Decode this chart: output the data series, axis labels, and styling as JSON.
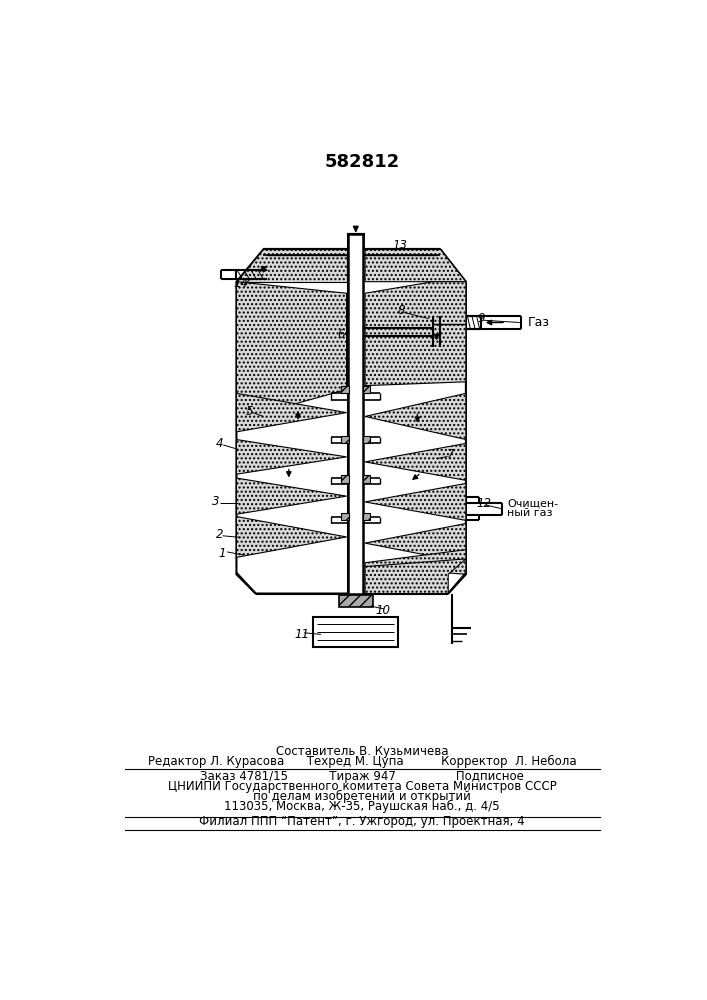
{
  "patent_number": "582812",
  "bg": "#ffffff",
  "lc": "#000000",
  "footer": {
    "line1": "Составитель В. Кузьмичева",
    "line2": "Редактор Л. Курасова      Техред М. Цупа          Корректор  Л. Небола",
    "line3": "Заказ 4781/15           Тираж 947                Подписное",
    "line4": "ЦНИИПИ Государственного комитета Совета Министров СССР",
    "line5": "по делам изобретений и открытий",
    "line6": "113035, Москва, Ж-35, Раушская наб., д. 4/5",
    "line7": "Филиал ППП “Патент”, г. Ужгород, ул. Проектная, 4"
  }
}
